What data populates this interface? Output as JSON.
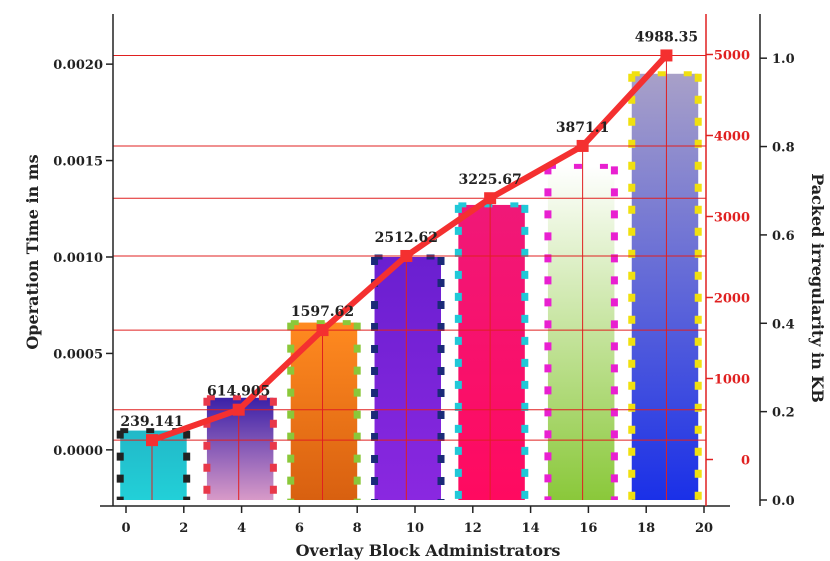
{
  "chart_data": {
    "type": "bar",
    "xlabel": "Overlay Block Administrators",
    "ylabel_left": "Operation Time in ms",
    "ylabel_right": "Packed irregularity in KB",
    "x_ticks": [
      "0",
      "2",
      "4",
      "6",
      "8",
      "10",
      "12",
      "14",
      "16",
      "18",
      "20"
    ],
    "left_axis": {
      "ticks": [
        "0.0000",
        "0.0005",
        "0.0010",
        "0.0015",
        "0.0020"
      ],
      "ylim": [
        -0.00026,
        0.00226
      ]
    },
    "red_axis": {
      "ticks": [
        "0",
        "1000",
        "2000",
        "3000",
        "4000",
        "5000"
      ],
      "ylim": [
        -500,
        5500
      ],
      "color": "#e02020"
    },
    "right_axis": {
      "ticks": [
        "0.0",
        "0.2",
        "0.4",
        "0.6",
        "0.8",
        "1.0"
      ],
      "ylim": [
        0.0,
        1.1
      ]
    },
    "bars": [
      {
        "x_from": -0.2,
        "x_to": 2.1,
        "value": 0.0001,
        "fill_top": "#22b8c8",
        "fill_bottom": "#22d0d8",
        "border": "#222222"
      },
      {
        "x_from": 2.8,
        "x_to": 5.1,
        "value": 0.00027,
        "fill_top": "#3a20a8",
        "fill_bottom": "#d89ac8",
        "border": "#e8384a"
      },
      {
        "x_from": 5.7,
        "x_to": 8.0,
        "value": 0.00066,
        "fill_top": "#ff8a20",
        "fill_bottom": "#d86010",
        "border": "#8ac83a"
      },
      {
        "x_from": 8.6,
        "x_to": 10.9,
        "value": 0.001,
        "fill_top": "#6a1fd0",
        "fill_bottom": "#8a28e0",
        "border": "#1a2a78"
      },
      {
        "x_from": 11.5,
        "x_to": 13.8,
        "value": 0.00127,
        "fill_top": "#f01878",
        "fill_bottom": "#ff0a60",
        "border": "#20c8d8"
      },
      {
        "x_from": 14.6,
        "x_to": 16.9,
        "value": 0.00147,
        "fill_top": "#ffffff",
        "fill_bottom": "#8ac83a",
        "border": "#e820d0"
      },
      {
        "x_from": 17.5,
        "x_to": 19.8,
        "value": 0.00195,
        "fill_top": "#a8a0c8",
        "fill_bottom": "#1a30e8",
        "border": "#f0e010"
      }
    ],
    "line_series": {
      "color": "#f43030",
      "x": [
        0.9,
        3.9,
        6.8,
        9.7,
        12.6,
        15.8,
        18.7
      ],
      "values": [
        239.141,
        614.905,
        1597.62,
        2512.62,
        3225.67,
        3871.1,
        4988.35
      ],
      "labels": [
        "239.141",
        "614.905",
        "1597.62",
        "2512.62",
        "3225.67",
        "3871.1",
        "4988.35"
      ]
    },
    "grid": "horizontal red lines at data points"
  }
}
